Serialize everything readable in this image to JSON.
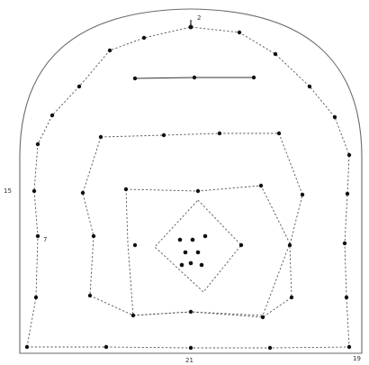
{
  "diagram": {
    "type": "tunnel-blast-hole-pattern",
    "labels": {
      "top_hole": "2",
      "bottom_center": "21",
      "left_mid": "15",
      "left_low": "7",
      "bottom_right": "19"
    }
  },
  "colors": {
    "ink": "#111111",
    "outline": "#6a6a6a",
    "background": "#ffffff"
  }
}
